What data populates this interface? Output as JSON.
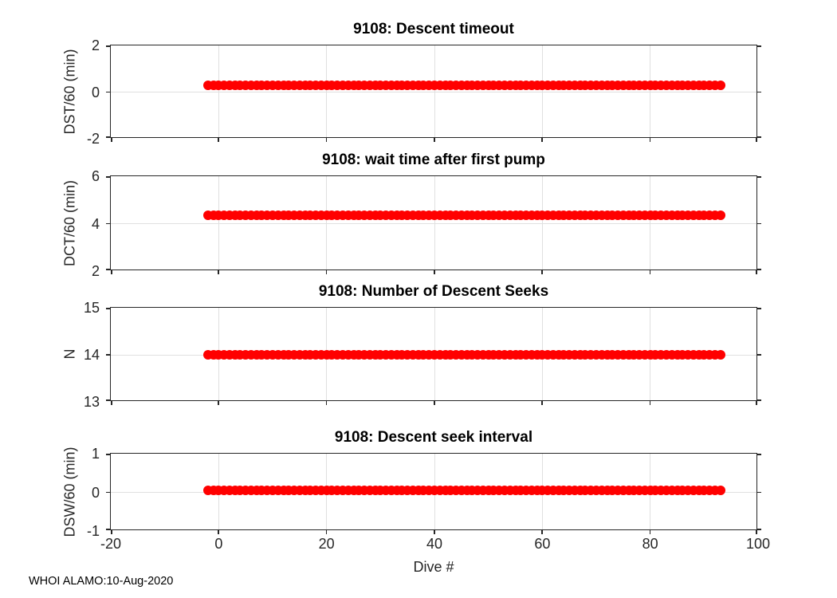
{
  "figure": {
    "background": "#ffffff",
    "footer_text": "WHOI ALAMO:10-Aug-2020"
  },
  "colors": {
    "marker": "#ff0000",
    "grid": "#e0e0e0",
    "axis": "#262626"
  },
  "x_axis": {
    "label": "Dive #",
    "range": [
      -20,
      100
    ],
    "ticks": [
      -20,
      0,
      20,
      40,
      60,
      80,
      100
    ]
  },
  "chart_data": [
    {
      "type": "scatter",
      "title": "9108: Descent timeout",
      "ylabel": "DST/60 (min)",
      "ylim": [
        -2,
        2
      ],
      "yticks": [
        2,
        0,
        -2
      ],
      "grid": true,
      "marker": "filled-circle",
      "marker_color": "#ff0000",
      "series": {
        "name": "DST/60",
        "x_start": -2,
        "x_end": 93,
        "x_step": 1,
        "y_constant": 0.3
      }
    },
    {
      "type": "scatter",
      "title": "9108: wait time after first pump",
      "ylabel": "DCT/60 (min)",
      "ylim": [
        2,
        6
      ],
      "yticks": [
        6,
        4,
        2
      ],
      "grid": true,
      "marker": "filled-circle",
      "marker_color": "#ff0000",
      "series": {
        "name": "DCT/60",
        "x_start": -2,
        "x_end": 93,
        "x_step": 1,
        "y_constant": 4.35
      }
    },
    {
      "type": "scatter",
      "title": "9108: Number of Descent Seeks",
      "ylabel": "N",
      "ylim": [
        13,
        15
      ],
      "yticks": [
        15,
        14,
        13
      ],
      "grid": true,
      "marker": "filled-circle",
      "marker_color": "#ff0000",
      "series": {
        "name": "N",
        "x_start": -2,
        "x_end": 93,
        "x_step": 1,
        "y_constant": 14.0
      }
    },
    {
      "type": "scatter",
      "title": "9108: Descent seek interval",
      "ylabel": "DSW/60 (min)",
      "ylim": [
        -1,
        1
      ],
      "yticks": [
        1,
        0,
        -1
      ],
      "grid": true,
      "marker": "filled-circle",
      "marker_color": "#ff0000",
      "xlabel": "Dive #",
      "series": {
        "name": "DSW/60",
        "x_start": -2,
        "x_end": 93,
        "x_step": 1,
        "y_constant": 0.05
      }
    }
  ]
}
